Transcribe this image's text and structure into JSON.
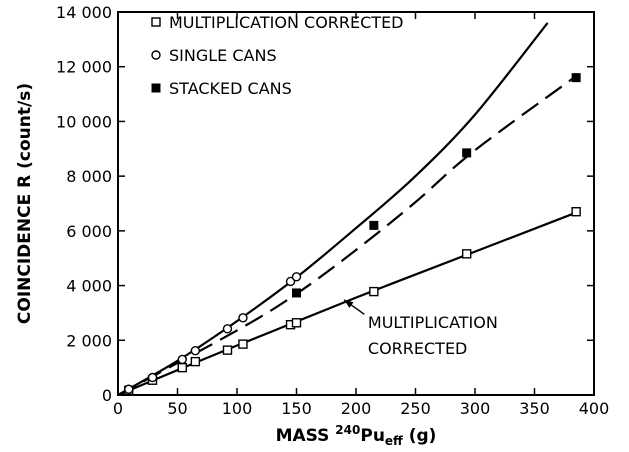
{
  "chart_data": {
    "type": "scatter",
    "xlabel": {
      "prefix": "MASS ",
      "sup": "240",
      "main": "Pu",
      "sub": "eff",
      "suffix": " (g)"
    },
    "ylabel": "COINCIDENCE R (count/s)",
    "xlim": [
      0,
      400
    ],
    "ylim": [
      0,
      14000
    ],
    "x_ticks": [
      0,
      50,
      100,
      150,
      200,
      250,
      300,
      350,
      400
    ],
    "x_tick_labels": [
      "0",
      "50",
      "100",
      "150",
      "200",
      "250",
      "300",
      "350",
      "400"
    ],
    "y_ticks": [
      0,
      2000,
      4000,
      6000,
      8000,
      10000,
      12000,
      14000
    ],
    "y_tick_labels": [
      "0",
      "2 000",
      "4 000",
      "6 000",
      "8 000",
      "10 000",
      "12 000",
      "14 000"
    ],
    "grid": false,
    "legend_position": "top-left",
    "series": [
      {
        "name": "MULTIPLICATION CORRECTED",
        "marker": "open-square",
        "points": [
          [
            9,
            170
          ],
          [
            29,
            540
          ],
          [
            54,
            1000
          ],
          [
            65,
            1220
          ],
          [
            92,
            1640
          ],
          [
            105,
            1860
          ],
          [
            145,
            2570
          ],
          [
            150,
            2640
          ],
          [
            215,
            3780
          ],
          [
            293,
            5160
          ],
          [
            385,
            6700
          ]
        ],
        "fit": {
          "style": "solid",
          "points": [
            [
              0,
              0
            ],
            [
              100,
              1810
            ],
            [
              200,
              3560
            ],
            [
              300,
              5240
            ],
            [
              387,
              6700
            ]
          ]
        }
      },
      {
        "name": "SINGLE CANS",
        "marker": "open-circle",
        "points": [
          [
            9,
            210
          ],
          [
            29,
            640
          ],
          [
            54,
            1300
          ],
          [
            65,
            1620
          ],
          [
            92,
            2420
          ],
          [
            105,
            2820
          ],
          [
            145,
            4150
          ],
          [
            150,
            4320
          ]
        ],
        "fit": {
          "style": "solid",
          "points": [
            [
              0,
              0
            ],
            [
              50,
              1250
            ],
            [
              100,
              2700
            ],
            [
              150,
              4300
            ],
            [
              200,
              6100
            ],
            [
              250,
              8000
            ],
            [
              300,
              10250
            ],
            [
              361,
              13600
            ]
          ]
        }
      },
      {
        "name": "STACKED CANS",
        "marker": "filled-square",
        "points": [
          [
            150,
            3730
          ],
          [
            215,
            6200
          ],
          [
            293,
            8850
          ],
          [
            385,
            11600
          ]
        ],
        "fit": {
          "style": "dashed",
          "points": [
            [
              0,
              0
            ],
            [
              100,
              2360
            ],
            [
              150,
              3700
            ],
            [
              200,
              5300
            ],
            [
              250,
              7050
            ],
            [
              300,
              8950
            ],
            [
              387,
              11720
            ]
          ]
        }
      }
    ],
    "annotations": [
      {
        "text": "MULTIPLICATION",
        "x": 210,
        "y": 2450
      },
      {
        "text": "CORRECTED",
        "x": 210,
        "y": 1500
      }
    ],
    "arrow": {
      "from": [
        207,
        2950
      ],
      "to": [
        190,
        3480
      ]
    }
  }
}
